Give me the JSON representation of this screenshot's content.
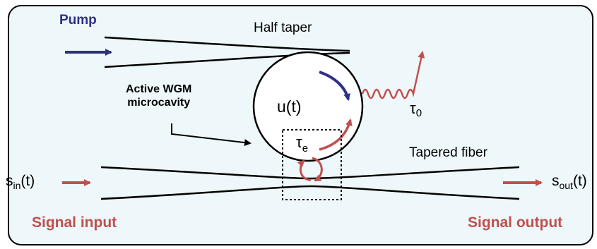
{
  "labels": {
    "pump": "Pump",
    "half_taper": "Half taper",
    "active_line1": "Active WGM",
    "active_line2": "microcavity",
    "mode_amplitude": "u(t)",
    "tau": "τ",
    "tau0_sub": "0",
    "taue_sub": "e",
    "tapered_fiber": "Tapered fiber",
    "s": "s",
    "s_in_sub": "in",
    "s_out_sub": "out",
    "time_arg": "(t)",
    "signal_input": "Signal input",
    "signal_output": "Signal output"
  },
  "colors": {
    "pump": "#2e2f87",
    "signal": "#c0504d",
    "panel_background": "#eef7fa",
    "line": "#000000"
  }
}
